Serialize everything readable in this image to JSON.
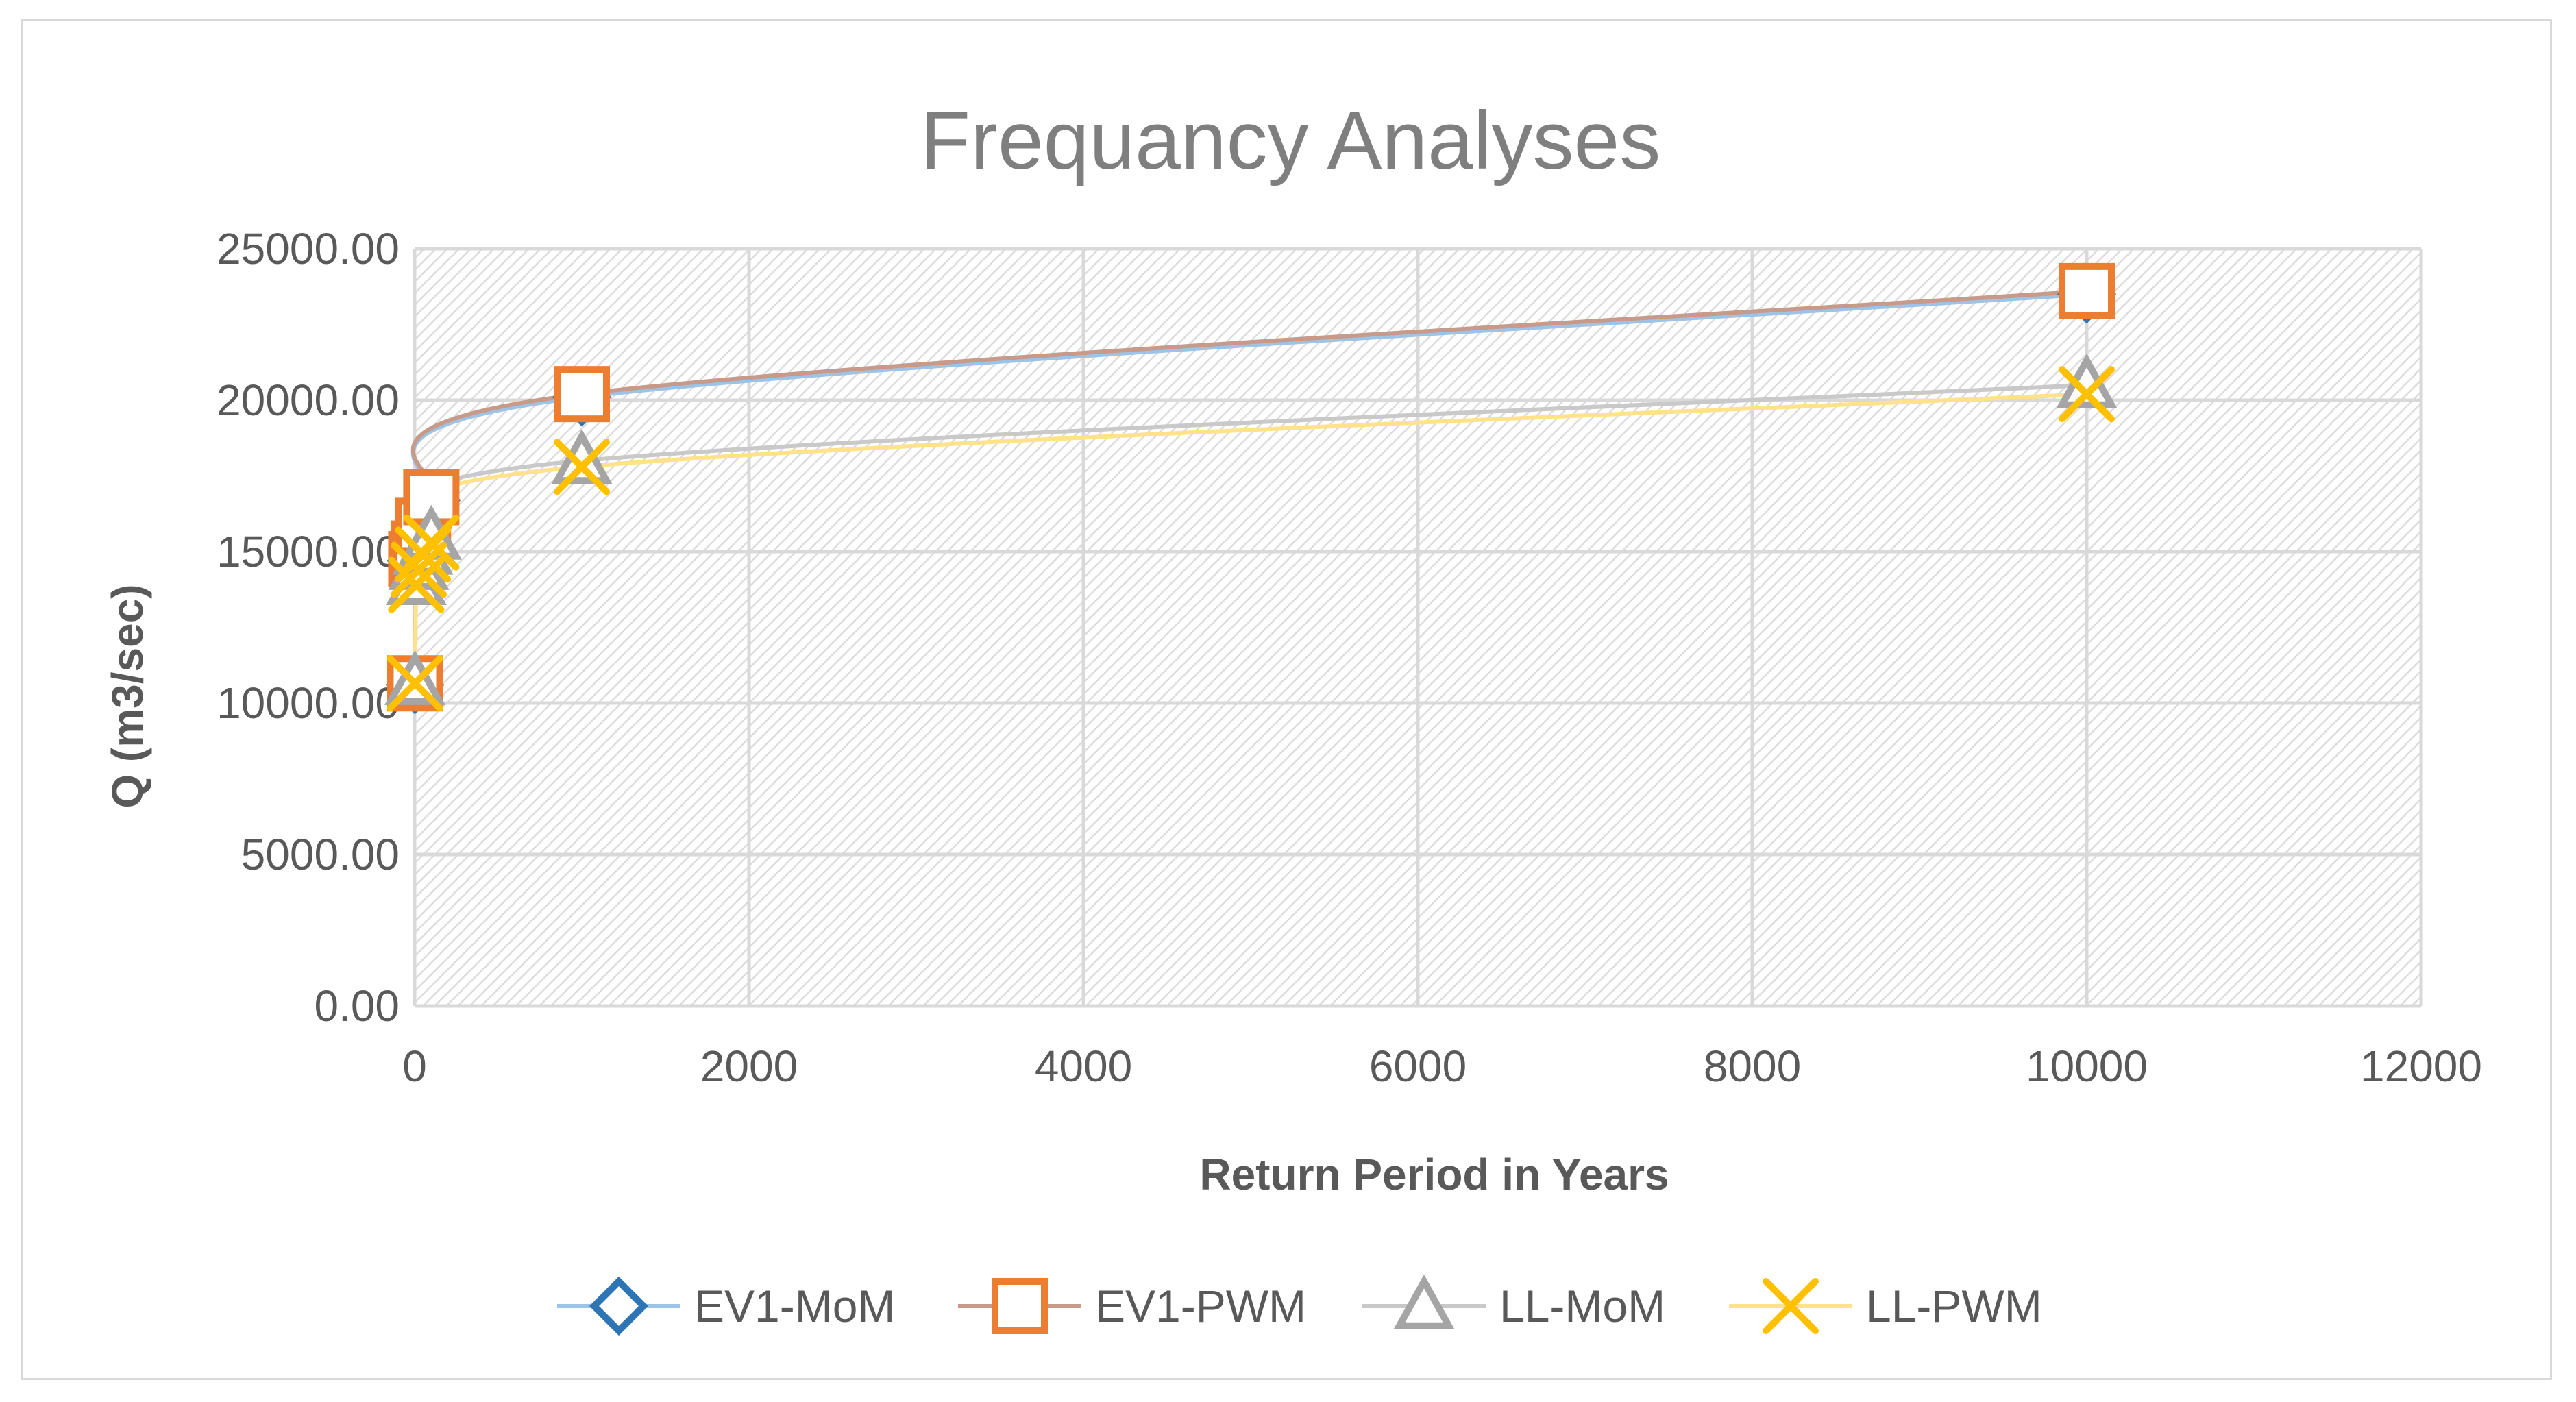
{
  "chart_data": {
    "type": "scatter",
    "title": "Frequancy Analyses",
    "xlabel": "Return Period in Years",
    "ylabel": "Q (m3/sec)",
    "xlim": [
      0,
      12000
    ],
    "ylim": [
      0,
      25000
    ],
    "x_ticks": [
      0,
      2000,
      4000,
      6000,
      8000,
      10000,
      12000
    ],
    "x_tick_labels": [
      "0",
      "2000",
      "4000",
      "6000",
      "8000",
      "10000",
      "12000"
    ],
    "y_ticks": [
      0,
      5000,
      10000,
      15000,
      20000,
      25000
    ],
    "y_tick_labels": [
      "0.00",
      "5000.00",
      "10000.00",
      "15000.00",
      "20000.00",
      "25000.00"
    ],
    "grid": true,
    "legend_position": "bottom",
    "x": [
      2,
      10,
      25,
      50,
      100,
      1000,
      10000
    ],
    "series": [
      {
        "name": "EV1-MoM",
        "marker": "diamond",
        "color": "#2e75b6",
        "line_color": "#9dc3e6",
        "values": [
          10600,
          14700,
          15000,
          15800,
          16700,
          20100,
          23500
        ]
      },
      {
        "name": "EV1-PWM",
        "marker": "square",
        "color": "#ed7d31",
        "line_color": "#c89a8a",
        "values": [
          10650,
          14750,
          15100,
          15850,
          16800,
          20200,
          23600
        ]
      },
      {
        "name": "LL-MoM",
        "marker": "triangle",
        "color": "#a5a5a5",
        "line_color": "#c9c9c9",
        "values": [
          10700,
          14000,
          14500,
          15000,
          15500,
          18000,
          20500
        ]
      },
      {
        "name": "LL-PWM",
        "marker": "x",
        "color": "#ffc000",
        "line_color": "#ffe28a",
        "values": [
          10650,
          13900,
          14400,
          14900,
          15300,
          17800,
          20200
        ]
      }
    ]
  }
}
